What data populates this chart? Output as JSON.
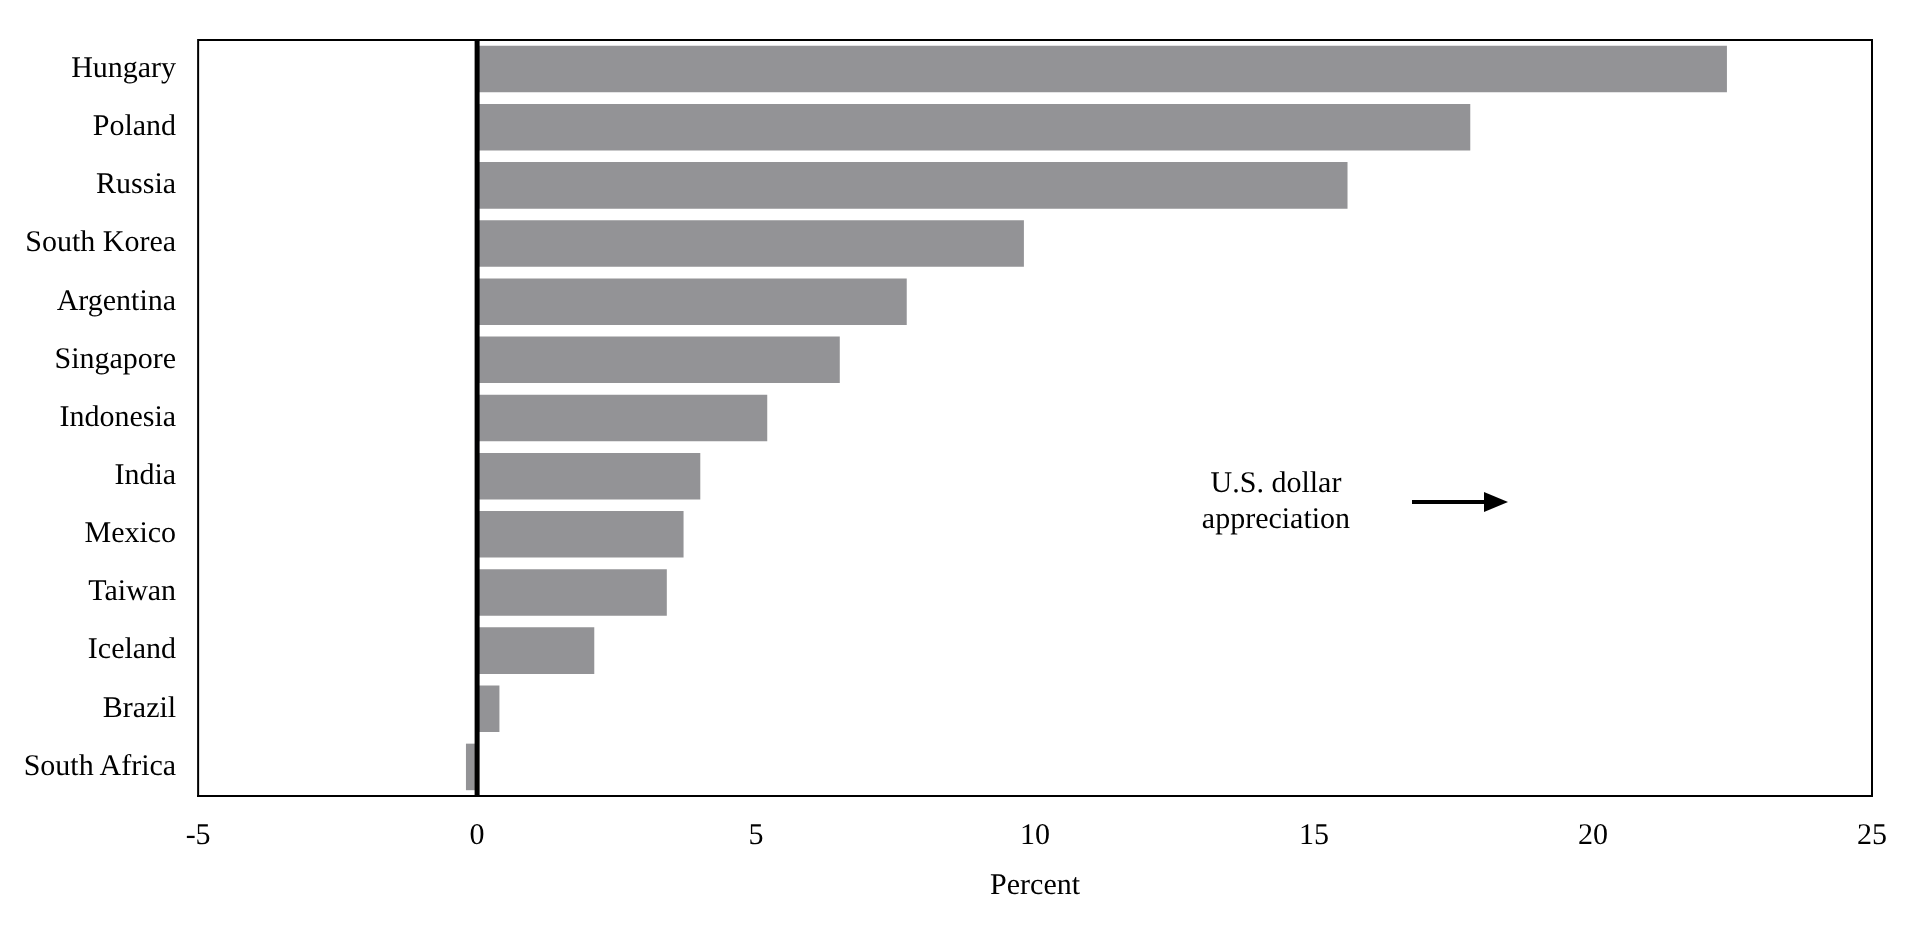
{
  "chart_data": {
    "type": "bar",
    "orientation": "horizontal",
    "xlabel": "Percent",
    "categories": [
      "Hungary",
      "Poland",
      "Russia",
      "South Korea",
      "Argentina",
      "Singapore",
      "Indonesia",
      "India",
      "Mexico",
      "Taiwan",
      "Iceland",
      "Brazil",
      "South Africa"
    ],
    "values": [
      22.4,
      17.8,
      15.6,
      9.8,
      7.7,
      6.5,
      5.2,
      4.0,
      3.7,
      3.4,
      2.1,
      0.4,
      -0.2
    ],
    "color": "#939396",
    "xlim": [
      -5,
      25
    ],
    "xticks": [
      -5,
      0,
      5,
      10,
      15,
      20,
      25
    ],
    "grid": false,
    "legend": false,
    "ref_lines": [
      {
        "axis": "x",
        "value": 0,
        "color": "#000000"
      }
    ],
    "annotations": [
      "U.S. dollar appreciation"
    ]
  }
}
